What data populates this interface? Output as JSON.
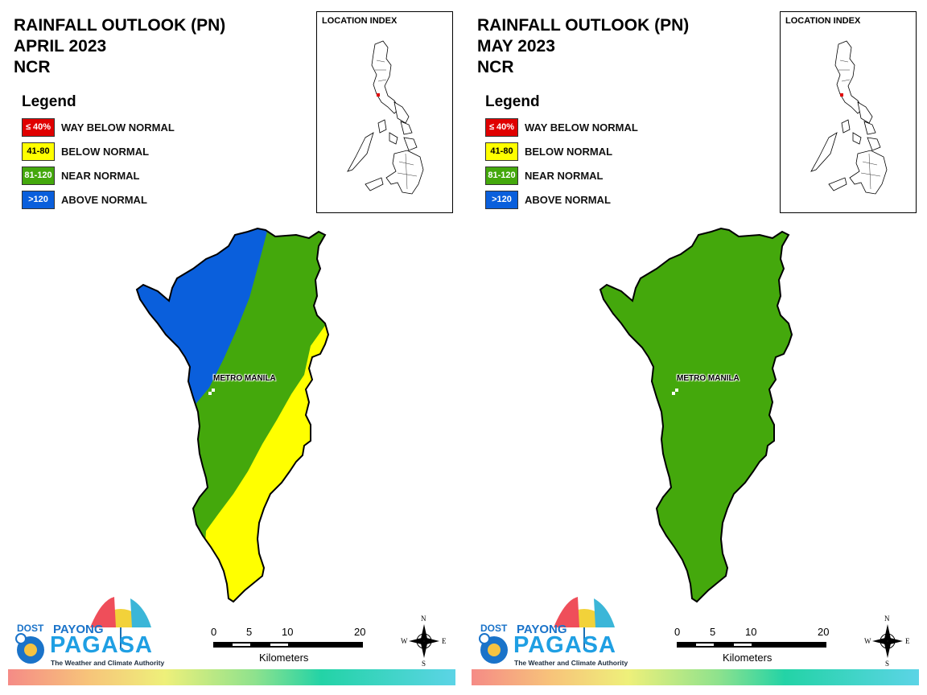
{
  "panels": [
    {
      "title_lines": [
        "RAINFALL OUTLOOK (PN)",
        "APRIL 2023",
        "NCR"
      ],
      "legend": {
        "title": "Legend",
        "items": [
          {
            "code": "≤ 40%",
            "label": "WAY BELOW NORMAL",
            "color": "#e00000",
            "text_color": "#ffffff"
          },
          {
            "code": "41-80",
            "label": "BELOW NORMAL",
            "color": "#ffff00",
            "text_color": "#000000"
          },
          {
            "code": "81-120",
            "label": "NEAR NORMAL",
            "color": "#44a80c",
            "text_color": "#ffffff"
          },
          {
            "code": ">120",
            "label": "ABOVE NORMAL",
            "color": "#0a5fdc",
            "text_color": "#ffffff"
          }
        ]
      },
      "location_index": {
        "title": "LOCATION INDEX"
      },
      "map": {
        "place_label": "METRO MANILA",
        "zones": [
          "ABOVE NORMAL",
          "NEAR NORMAL",
          "BELOW NORMAL"
        ]
      },
      "scale": {
        "ticks": [
          "0",
          "5",
          "10",
          "20"
        ],
        "unit": "Kilometers"
      },
      "compass": {
        "n": "N",
        "s": "S",
        "e": "E",
        "w": "W"
      },
      "logo": {
        "dost": "DOST",
        "payong": "PAYONG",
        "pagasa": "PAGASA",
        "tagline": "The Weather and Climate Authority"
      }
    },
    {
      "title_lines": [
        "RAINFALL OUTLOOK (PN)",
        "MAY 2023",
        "NCR"
      ],
      "legend": {
        "title": "Legend",
        "items": [
          {
            "code": "≤ 40%",
            "label": "WAY BELOW NORMAL",
            "color": "#e00000",
            "text_color": "#ffffff"
          },
          {
            "code": "41-80",
            "label": "BELOW NORMAL",
            "color": "#ffff00",
            "text_color": "#000000"
          },
          {
            "code": "81-120",
            "label": "NEAR NORMAL",
            "color": "#44a80c",
            "text_color": "#ffffff"
          },
          {
            "code": ">120",
            "label": "ABOVE NORMAL",
            "color": "#0a5fdc",
            "text_color": "#ffffff"
          }
        ]
      },
      "location_index": {
        "title": "LOCATION INDEX"
      },
      "map": {
        "place_label": "METRO MANILA",
        "zones": [
          "NEAR NORMAL"
        ]
      },
      "scale": {
        "ticks": [
          "0",
          "5",
          "10",
          "20"
        ],
        "unit": "Kilometers"
      },
      "compass": {
        "n": "N",
        "s": "S",
        "e": "E",
        "w": "W"
      },
      "logo": {
        "dost": "DOST",
        "payong": "PAYONG",
        "pagasa": "PAGASA",
        "tagline": "The Weather and Climate Authority"
      }
    }
  ]
}
